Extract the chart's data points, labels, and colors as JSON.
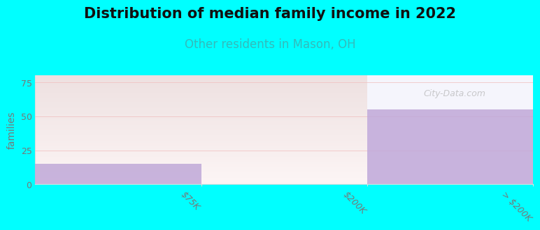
{
  "title": "Distribution of median family income in 2022",
  "subtitle": "Other residents in Mason, OH",
  "title_fontsize": 15,
  "subtitle_fontsize": 12,
  "subtitle_color": "#33bbbb",
  "background_color": "#00ffff",
  "ylabel": "families",
  "ylabel_fontsize": 10,
  "categories": [
    "$75K",
    "$200K",
    "> $200K"
  ],
  "values": [
    15,
    0,
    55
  ],
  "bar_color": "#c0a8d8",
  "ylim": [
    0,
    80
  ],
  "yticks": [
    0,
    25,
    50,
    75
  ],
  "watermark": "City-Data.com",
  "tick_label_color": "#777777",
  "grid_color": "#f0c0c0",
  "grid_alpha": 0.9,
  "green_bg_top": "#e8f5e8",
  "green_bg_bottom": "#d0edd0",
  "white_bg": "#f4f4ff",
  "axis_line_color": "#dddddd"
}
